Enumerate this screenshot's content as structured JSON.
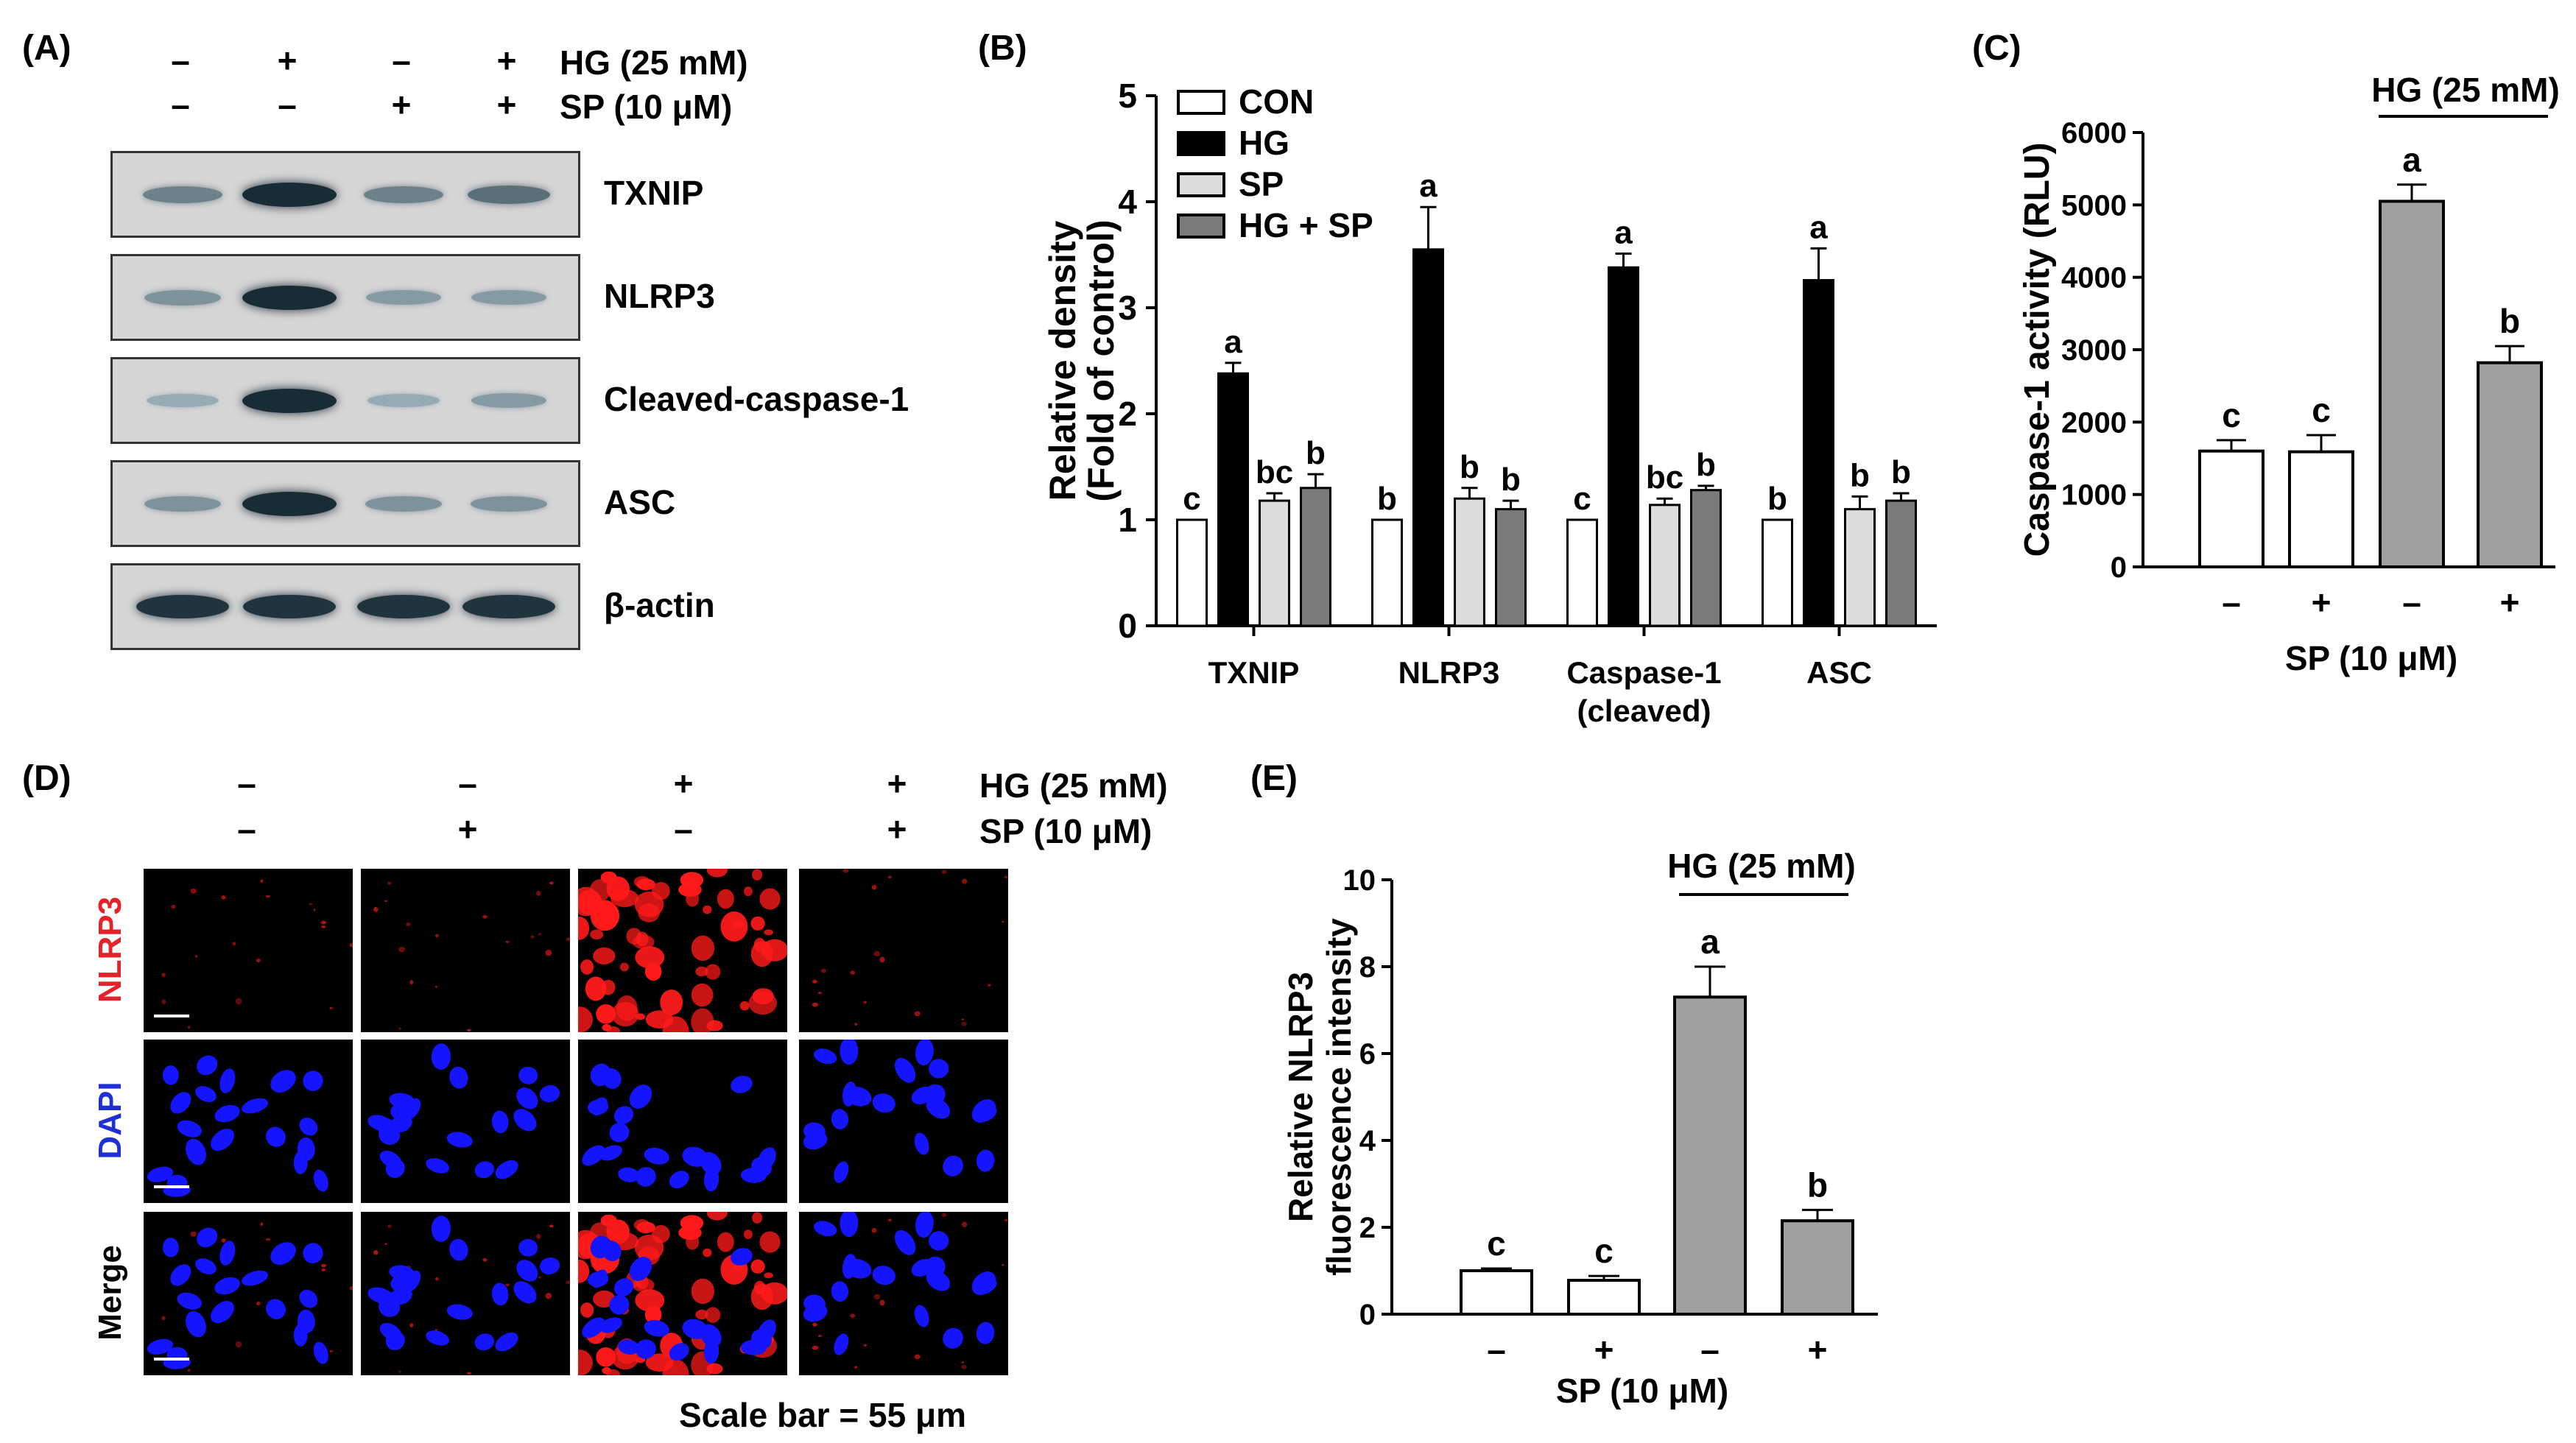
{
  "panel_labels": {
    "a": "(A)",
    "b": "(B)",
    "c": "(C)",
    "d": "(D)",
    "e": "(E)"
  },
  "treatment_rows": {
    "hg_label": "HG (25 mM)",
    "sp_label": "SP (10 μM)",
    "hg_signs": [
      "–",
      "+",
      "–",
      "+"
    ],
    "sp_signs": [
      "–",
      "–",
      "+",
      "+"
    ]
  },
  "panel_d": {
    "hg_label": "HG (25 mM)",
    "sp_label": "SP (10 μM)",
    "hg_signs": [
      "–",
      "–",
      "+",
      "+"
    ],
    "sp_signs": [
      "–",
      "+",
      "–",
      "+"
    ],
    "row_labels": [
      "NLRP3",
      "DAPI",
      "Merge"
    ],
    "row_label_colors": [
      "#e4222a",
      "#1f2fd6",
      "#000000"
    ],
    "scale_bar_text": "Scale bar = 55 μm"
  },
  "blots": [
    {
      "name": "TXNIP",
      "intensity": [
        0.45,
        0.95,
        0.45,
        0.55
      ]
    },
    {
      "name": "NLRP3",
      "intensity": [
        0.35,
        0.95,
        0.3,
        0.3
      ]
    },
    {
      "name": "Cleaved-caspase-1",
      "intensity": [
        0.2,
        0.95,
        0.2,
        0.3
      ]
    },
    {
      "name": "ASC",
      "intensity": [
        0.35,
        0.95,
        0.35,
        0.35
      ]
    },
    {
      "name": "β-actin",
      "intensity": [
        0.9,
        0.9,
        0.9,
        0.9
      ]
    }
  ],
  "chart_data": [
    {
      "panel": "B",
      "type": "bar",
      "ylabel": "Relative density (Fold of control)",
      "ylabel_lines": [
        "Relative density",
        "(Fold of control)"
      ],
      "ylim": [
        0,
        5
      ],
      "yticks": [
        0,
        1,
        2,
        3,
        4,
        5
      ],
      "categories": [
        "TXNIP",
        "NLRP3",
        "Caspase-1 (cleaved)",
        "ASC"
      ],
      "category_lines": [
        [
          "TXNIP"
        ],
        [
          "NLRP3"
        ],
        [
          "Caspase-1",
          "(cleaved)"
        ],
        [
          "ASC"
        ]
      ],
      "legend_position": "top-left",
      "series": [
        {
          "name": "CON",
          "color": "#ffffff",
          "values": [
            1.0,
            1.0,
            1.0,
            1.0
          ],
          "errors": [
            0,
            0,
            0,
            0
          ],
          "letters": [
            "c",
            "b",
            "c",
            "b"
          ]
        },
        {
          "name": "HG",
          "color": "#000000",
          "values": [
            2.38,
            3.55,
            3.38,
            3.26
          ],
          "errors": [
            0.1,
            0.4,
            0.13,
            0.3
          ],
          "letters": [
            "a",
            "a",
            "a",
            "a"
          ]
        },
        {
          "name": "SP",
          "color": "#dcdcdc",
          "values": [
            1.18,
            1.2,
            1.14,
            1.1
          ],
          "errors": [
            0.07,
            0.1,
            0.06,
            0.12
          ],
          "letters": [
            "bc",
            "b",
            "bc",
            "b"
          ]
        },
        {
          "name": "HG + SP",
          "color": "#7a7a7a",
          "values": [
            1.3,
            1.1,
            1.28,
            1.18
          ],
          "errors": [
            0.13,
            0.08,
            0.04,
            0.07
          ],
          "letters": [
            "b",
            "b",
            "b",
            "b"
          ]
        }
      ]
    },
    {
      "panel": "C",
      "type": "bar",
      "ylabel": "Caspase-1 activity (RLU)",
      "ylim": [
        0,
        6000
      ],
      "yticks": [
        0,
        1000,
        2000,
        3000,
        4000,
        5000,
        6000
      ],
      "categories": [
        "–",
        "+",
        "–",
        "+"
      ],
      "xlabel": "SP (10 μM)",
      "bracket_label": "HG (25 mM)",
      "values": [
        1600,
        1590,
        5050,
        2820
      ],
      "errors": [
        150,
        230,
        230,
        230
      ],
      "letters": [
        "c",
        "c",
        "a",
        "b"
      ],
      "colors": [
        "#ffffff",
        "#ffffff",
        "#a0a0a0",
        "#a0a0a0"
      ]
    },
    {
      "panel": "E",
      "type": "bar",
      "ylabel": "Relative NLRP3 fluorescence intensity",
      "ylabel_lines": [
        "Relative NLRP3",
        "fluorescence intensity"
      ],
      "ylim": [
        0,
        10
      ],
      "yticks": [
        0,
        2,
        4,
        6,
        8,
        10
      ],
      "categories": [
        "–",
        "+",
        "–",
        "+"
      ],
      "xlabel": "SP (10 μM)",
      "bracket_label": "HG (25 mM)",
      "values": [
        1.0,
        0.78,
        7.3,
        2.15
      ],
      "errors": [
        0.05,
        0.1,
        0.7,
        0.25
      ],
      "letters": [
        "c",
        "c",
        "a",
        "b"
      ],
      "colors": [
        "#ffffff",
        "#ffffff",
        "#a0a0a0",
        "#a0a0a0"
      ]
    }
  ]
}
